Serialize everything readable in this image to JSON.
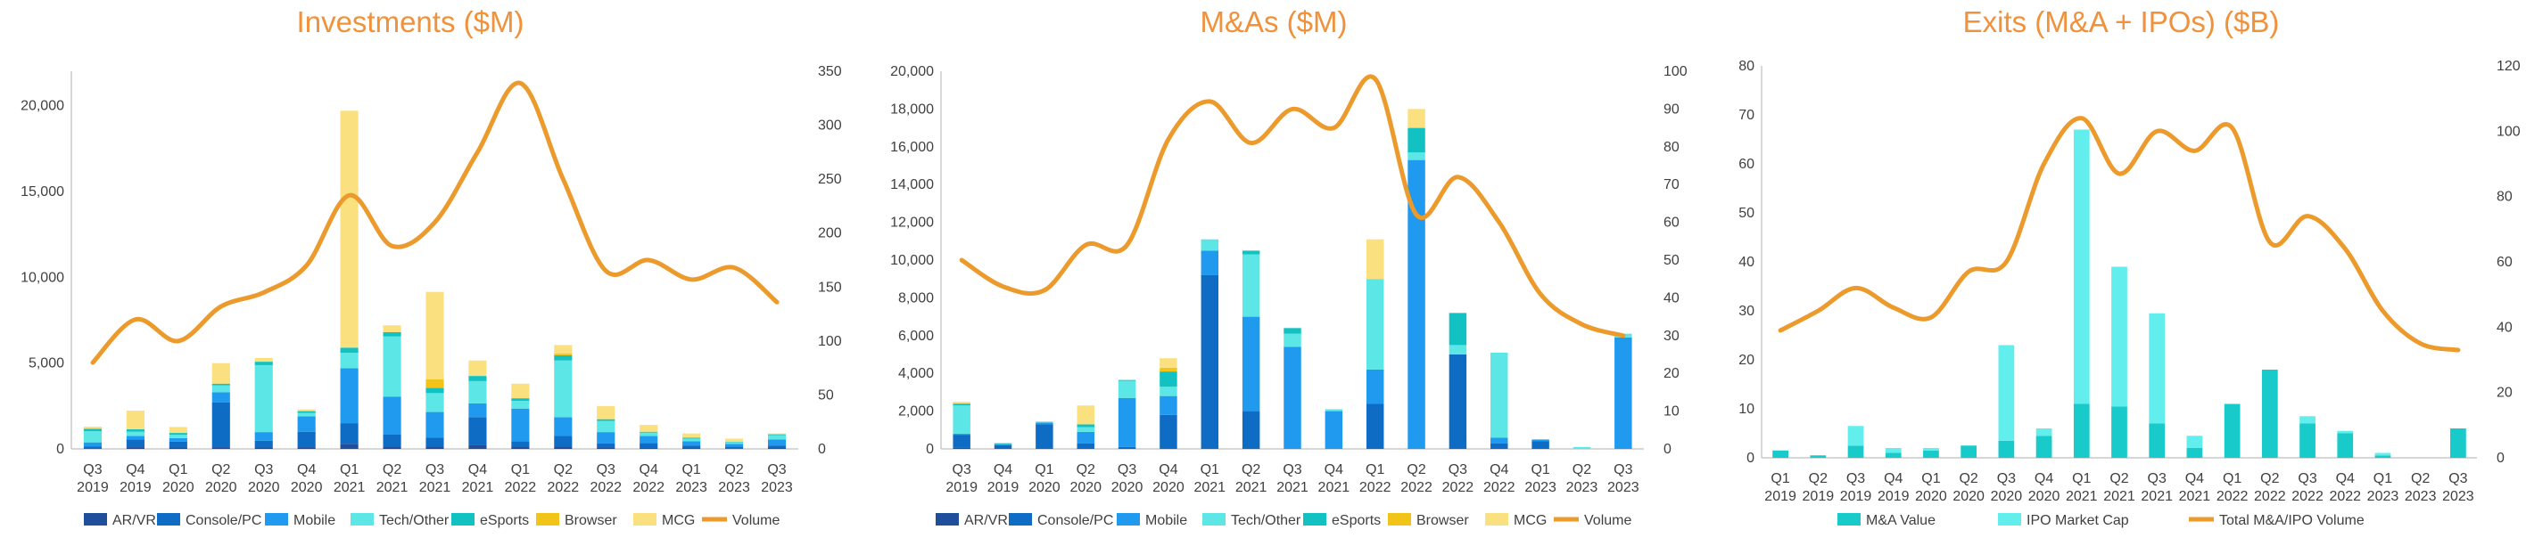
{
  "colors": {
    "ar_vr": "#1F4E9B",
    "console_pc": "#0E6CC4",
    "mobile": "#1F9AEE",
    "tech_other": "#5CE6E6",
    "esports": "#12C2C2",
    "browser": "#F2C418",
    "mcg": "#FAE07E",
    "volume": "#EC9A2C",
    "ma_value": "#18CACA",
    "ipo_cap": "#63EEEE",
    "axis": "#BFBFBF",
    "title": "#F0913C"
  },
  "chart_data": [
    {
      "type": "bar",
      "title": "Investments ($M)",
      "categories": [
        "Q3 2019",
        "Q4 2019",
        "Q1 2020",
        "Q2 2020",
        "Q3 2020",
        "Q4 2020",
        "Q1 2021",
        "Q2 2021",
        "Q3 2021",
        "Q4 2021",
        "Q1 2022",
        "Q2 2022",
        "Q3 2022",
        "Q4 2022",
        "Q1 2023",
        "Q2 2023",
        "Q3 2023"
      ],
      "ylim": [
        0,
        22000
      ],
      "y2lim": [
        0,
        350
      ],
      "yticks": [
        0,
        5000,
        10000,
        15000,
        20000
      ],
      "ytick_labels": [
        "0",
        "5,000",
        "10,000",
        "15,000",
        "20,000"
      ],
      "y2ticks": [
        0,
        50,
        100,
        150,
        200,
        250,
        300,
        350
      ],
      "series": [
        {
          "name": "AR/VR",
          "color_key": "ar_vr",
          "values": [
            30,
            100,
            80,
            100,
            80,
            100,
            300,
            150,
            150,
            250,
            150,
            150,
            80,
            50,
            50,
            40,
            50
          ]
        },
        {
          "name": "Console/PC",
          "color_key": "console_pc",
          "values": [
            100,
            450,
            350,
            2600,
            400,
            900,
            1200,
            700,
            500,
            1600,
            300,
            600,
            250,
            300,
            150,
            100,
            150
          ]
        },
        {
          "name": "Mobile",
          "color_key": "mobile",
          "values": [
            250,
            200,
            200,
            600,
            500,
            900,
            3200,
            2200,
            1500,
            800,
            1900,
            1100,
            650,
            400,
            250,
            150,
            350
          ]
        },
        {
          "name": "Tech/Other",
          "color_key": "tech_other",
          "values": [
            650,
            250,
            200,
            400,
            3900,
            200,
            900,
            3500,
            1100,
            1300,
            450,
            3300,
            650,
            200,
            150,
            100,
            250
          ]
        },
        {
          "name": "eSports",
          "color_key": "esports",
          "values": [
            150,
            150,
            100,
            100,
            200,
            100,
            300,
            250,
            300,
            300,
            150,
            300,
            100,
            50,
            50,
            20,
            50
          ]
        },
        {
          "name": "Browser",
          "color_key": "browser",
          "values": [
            0,
            0,
            0,
            0,
            0,
            0,
            0,
            0,
            500,
            0,
            0,
            100,
            0,
            0,
            0,
            0,
            0
          ]
        },
        {
          "name": "MCG",
          "color_key": "mcg",
          "values": [
            120,
            1080,
            350,
            1200,
            220,
            100,
            13800,
            400,
            5100,
            900,
            850,
            500,
            770,
            400,
            250,
            190,
            50
          ]
        }
      ],
      "line": {
        "name": "Volume",
        "color_key": "volume",
        "values": [
          80,
          120,
          100,
          132,
          145,
          170,
          235,
          188,
          210,
          275,
          339,
          250,
          165,
          175,
          157,
          168,
          136
        ]
      }
    },
    {
      "type": "bar",
      "title": "M&As ($M)",
      "categories": [
        "Q3 2019",
        "Q4 2019",
        "Q1 2020",
        "Q2 2020",
        "Q3 2020",
        "Q4 2020",
        "Q1 2021",
        "Q2 2021",
        "Q3 2021",
        "Q4 2021",
        "Q1 2022",
        "Q2 2022",
        "Q3 2022",
        "Q4 2022",
        "Q1 2023",
        "Q2 2023",
        "Q3 2023"
      ],
      "ylim": [
        0,
        20000
      ],
      "y2lim": [
        0,
        100
      ],
      "yticks": [
        0,
        2000,
        4000,
        6000,
        8000,
        10000,
        12000,
        14000,
        16000,
        18000,
        20000
      ],
      "ytick_labels": [
        "0",
        "2,000",
        "4,000",
        "6,000",
        "8,000",
        "10,000",
        "12,000",
        "14,000",
        "16,000",
        "18,000",
        "20,000"
      ],
      "y2ticks": [
        0,
        10,
        20,
        30,
        40,
        50,
        60,
        70,
        80,
        90,
        100
      ],
      "series": [
        {
          "name": "AR/VR",
          "color_key": "ar_vr",
          "values": [
            50,
            0,
            0,
            0,
            0,
            0,
            0,
            0,
            0,
            0,
            0,
            0,
            0,
            0,
            0,
            0,
            0
          ]
        },
        {
          "name": "Console/PC",
          "color_key": "console_pc",
          "values": [
            700,
            200,
            1300,
            300,
            100,
            1800,
            9200,
            2000,
            0,
            0,
            2400,
            0,
            5000,
            300,
            400,
            0,
            0
          ]
        },
        {
          "name": "Mobile",
          "color_key": "mobile",
          "values": [
            50,
            50,
            100,
            600,
            2600,
            1000,
            1300,
            5000,
            5400,
            2000,
            1800,
            15300,
            0,
            300,
            100,
            0,
            5900
          ]
        },
        {
          "name": "Tech/Other",
          "color_key": "tech_other",
          "values": [
            1500,
            0,
            50,
            250,
            900,
            500,
            600,
            3300,
            700,
            100,
            4800,
            400,
            500,
            4500,
            0,
            100,
            200
          ]
        },
        {
          "name": "eSports",
          "color_key": "esports",
          "values": [
            100,
            50,
            0,
            150,
            50,
            800,
            0,
            200,
            300,
            0,
            0,
            1300,
            1700,
            0,
            0,
            0,
            0
          ]
        },
        {
          "name": "Browser",
          "color_key": "browser",
          "values": [
            0,
            0,
            0,
            0,
            0,
            200,
            0,
            0,
            0,
            0,
            0,
            0,
            0,
            0,
            0,
            0,
            0
          ]
        },
        {
          "name": "MCG",
          "color_key": "mcg",
          "values": [
            100,
            0,
            0,
            1000,
            0,
            500,
            0,
            0,
            0,
            0,
            2100,
            1000,
            0,
            0,
            0,
            0,
            0
          ]
        }
      ],
      "line": {
        "name": "Volume",
        "color_key": "volume",
        "values": [
          50,
          43,
          42,
          54,
          54,
          82,
          92,
          81,
          90,
          85,
          98,
          62,
          72,
          60,
          41,
          33,
          30
        ]
      }
    },
    {
      "type": "bar",
      "title": "Exits (M&A + IPOs) ($B)",
      "categories": [
        "Q1 2019",
        "Q2 2019",
        "Q3 2019",
        "Q4 2019",
        "Q1 2020",
        "Q2 2020",
        "Q3 2020",
        "Q4 2020",
        "Q1 2021",
        "Q2 2021",
        "Q3 2021",
        "Q4 2021",
        "Q1 2022",
        "Q2 2022",
        "Q3 2022",
        "Q4 2022",
        "Q1 2023",
        "Q2 2023",
        "Q3 2023"
      ],
      "ylim": [
        0,
        80
      ],
      "y2lim": [
        0,
        120
      ],
      "yticks": [
        0,
        10,
        20,
        30,
        40,
        50,
        60,
        70,
        80
      ],
      "ytick_labels": [
        "0",
        "10",
        "20",
        "30",
        "40",
        "50",
        "60",
        "70",
        "80"
      ],
      "y2ticks": [
        0,
        20,
        40,
        60,
        80,
        100,
        120
      ],
      "series": [
        {
          "name": "M&A Value",
          "color_key": "ma_value",
          "values": [
            1.5,
            0.5,
            2.5,
            1,
            1.5,
            2.5,
            3.5,
            4.5,
            11,
            10.5,
            7,
            2,
            11,
            18,
            7,
            5,
            0.5,
            0,
            6
          ]
        },
        {
          "name": "IPO Market Cap",
          "color_key": "ipo_cap",
          "values": [
            0,
            0,
            4,
            1,
            0.5,
            0,
            19.5,
            1.5,
            56,
            28.5,
            22.5,
            2.5,
            0,
            0,
            1.5,
            0.5,
            0.5,
            0,
            0
          ]
        }
      ],
      "line": {
        "name": "Total M&A/IPO Volume",
        "color_key": "volume",
        "values": [
          39,
          45,
          52,
          46,
          43,
          57,
          60,
          90,
          104,
          87,
          100,
          94,
          101,
          66,
          74,
          64,
          45,
          35,
          33
        ]
      }
    }
  ]
}
